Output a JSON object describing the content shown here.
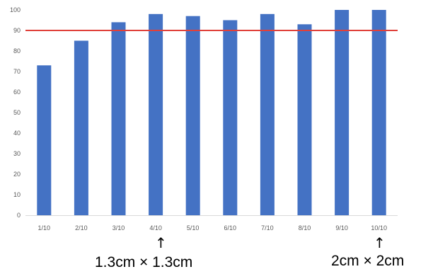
{
  "chart_data": {
    "type": "bar",
    "categories": [
      "1/10",
      "2/10",
      "3/10",
      "4/10",
      "5/10",
      "6/10",
      "7/10",
      "8/10",
      "9/10",
      "10/10"
    ],
    "values": [
      73,
      85,
      94,
      98,
      97,
      95,
      98,
      93,
      100,
      100
    ],
    "title": "",
    "xlabel": "",
    "ylabel": "",
    "ylim": [
      0,
      100
    ],
    "yticks": [
      0,
      10,
      20,
      30,
      40,
      50,
      60,
      70,
      80,
      90,
      100
    ],
    "grid": false,
    "bar_color": "#4472C4",
    "threshold": {
      "value": 90,
      "color": "#E0403A"
    }
  },
  "annotations": [
    {
      "category": "4/10",
      "arrow": "↑",
      "text": "1.3cm × 1.3cm"
    },
    {
      "category": "10/10",
      "arrow": "↑",
      "text": "2cm × 2cm"
    }
  ]
}
